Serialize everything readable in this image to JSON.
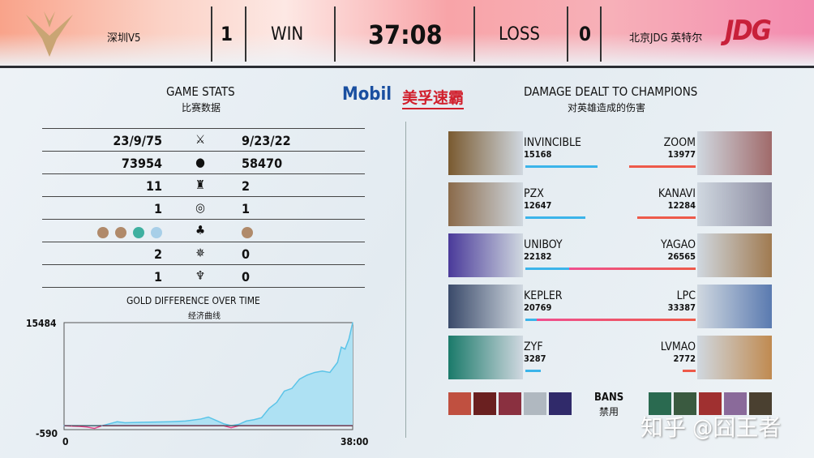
{
  "header": {
    "left_team": "深圳V5",
    "left_score": "1",
    "left_result": "WIN",
    "game_time": "37:08",
    "right_result": "LOSS",
    "right_score": "0",
    "right_team": "北京JDG 英特尔",
    "right_logo_text": "JDG",
    "colors": {
      "v5_gold": "#c9a574",
      "jdg_red": "#c8203a"
    }
  },
  "game_stats": {
    "title": "GAME STATS",
    "subtitle": "比赛数据",
    "rows": [
      {
        "icon": "kda-icon",
        "left": "23/9/75",
        "right": "9/23/22"
      },
      {
        "icon": "gold-icon",
        "left": "73954",
        "right": "58470"
      },
      {
        "icon": "tower-icon",
        "left": "11",
        "right": "2"
      },
      {
        "icon": "inhibitor-icon",
        "left": "1",
        "right": "1"
      },
      {
        "icon": "dragon-icon",
        "left_dragons": [
          "mountain",
          "mountain",
          "ocean",
          "cloud"
        ],
        "right_dragons": [
          "mountain"
        ]
      },
      {
        "icon": "herald-icon",
        "left": "2",
        "right": "0"
      },
      {
        "icon": "baron-icon",
        "left": "1",
        "right": "0"
      }
    ]
  },
  "sponsor": {
    "brand": "Mobil",
    "text": "美孚速霸"
  },
  "damage": {
    "title": "DAMAGE DEALT TO CHAMPIONS",
    "subtitle": "对英雄造成的伤害",
    "left": [
      {
        "name": "INVINCIBLE",
        "damage": "15168",
        "value": 15168
      },
      {
        "name": "PZX",
        "damage": "12647",
        "value": 12647
      },
      {
        "name": "UNIBOY",
        "damage": "22182",
        "value": 22182
      },
      {
        "name": "KEPLER",
        "damage": "20769",
        "value": 20769
      },
      {
        "name": "ZYF",
        "damage": "3287",
        "value": 3287
      }
    ],
    "right": [
      {
        "name": "ZOOM",
        "damage": "13977",
        "value": 13977
      },
      {
        "name": "KANAVI",
        "damage": "12284",
        "value": 12284
      },
      {
        "name": "YAGAO",
        "damage": "26565",
        "value": 26565
      },
      {
        "name": "LPC",
        "damage": "33387",
        "value": 33387
      },
      {
        "name": "LVMAO",
        "damage": "2772",
        "value": 2772
      }
    ],
    "colors": {
      "left_bar": "#3bb4ea",
      "right_bar": "#ee5a4a",
      "right_bar_high": "#ef4f8f"
    }
  },
  "bans": {
    "label": "BANS",
    "sublabel": "禁用"
  },
  "watermark": "知乎 @囧王者",
  "chart_data": {
    "type": "area",
    "title": "GOLD DIFFERENCE OVER TIME",
    "subtitle": "经济曲线",
    "ymax_label": "15484",
    "ymin_label": "-590",
    "xmin_label": "0",
    "xmax_label": "38:00",
    "ylim": [
      -590,
      15484
    ],
    "xlim": [
      0,
      38
    ],
    "x": [
      0,
      1,
      2,
      3,
      4,
      5,
      6,
      7,
      8,
      10,
      12,
      14,
      16,
      18,
      19,
      20,
      21,
      22,
      23,
      24,
      25,
      26,
      27,
      28,
      29,
      30,
      31,
      32,
      33,
      34,
      35,
      36,
      36.5,
      37,
      37.5,
      38
    ],
    "y": [
      0,
      -50,
      -100,
      -200,
      -400,
      0,
      300,
      600,
      450,
      500,
      550,
      600,
      700,
      1000,
      1300,
      800,
      300,
      -300,
      200,
      700,
      900,
      1200,
      2600,
      3500,
      5200,
      5600,
      7000,
      7600,
      8000,
      8200,
      8000,
      9500,
      11800,
      11500,
      13000,
      15484
    ],
    "colors": {
      "positive": "#5bc4e8",
      "negative": "#e0478a",
      "fill": "#aee1f3"
    }
  }
}
